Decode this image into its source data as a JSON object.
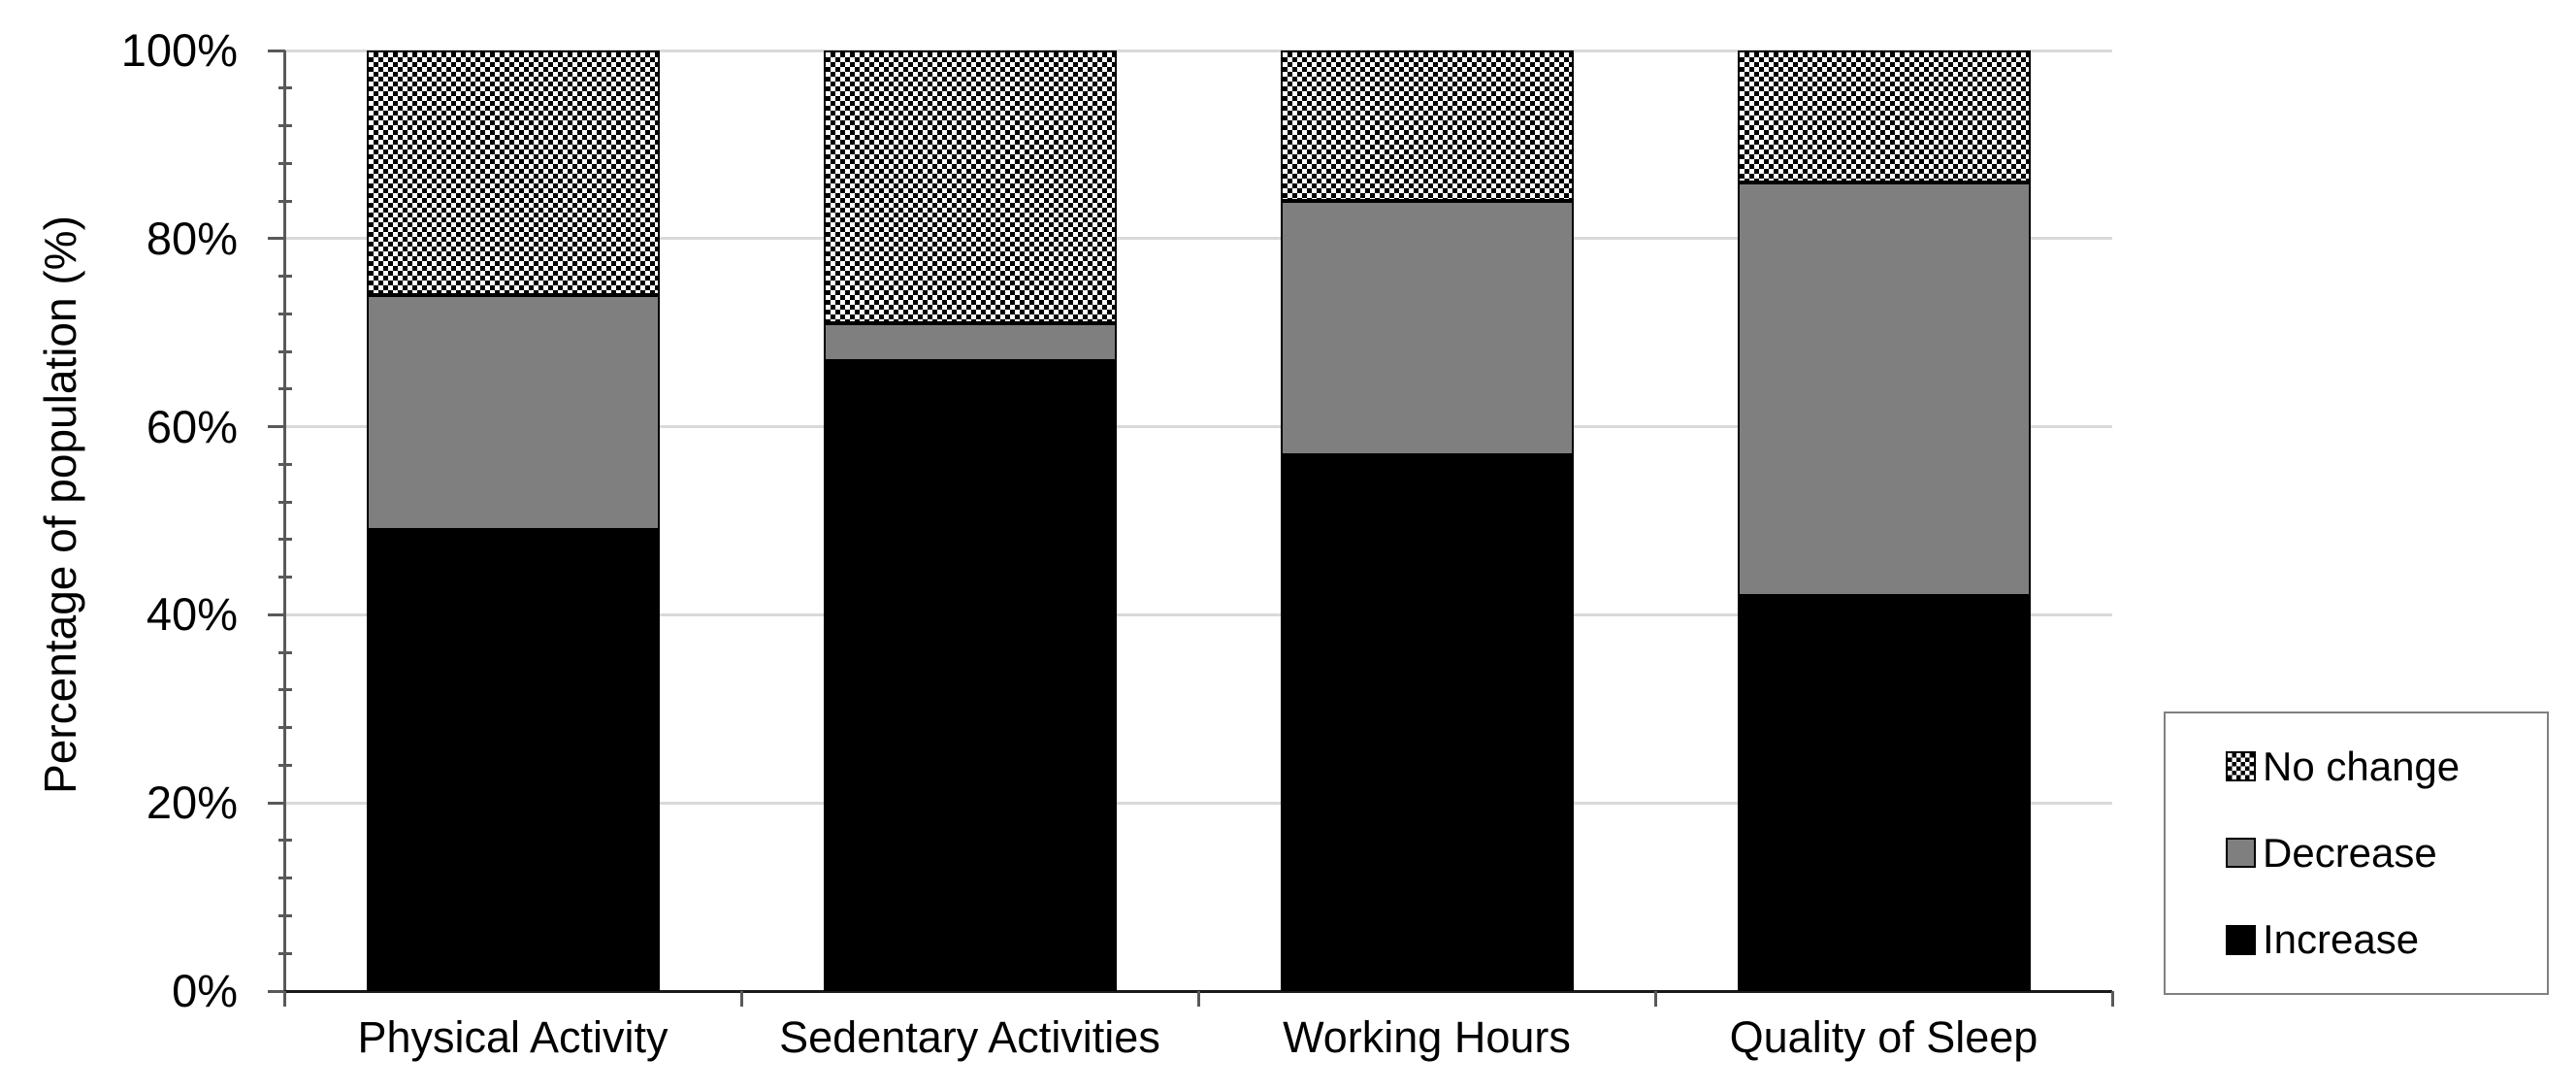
{
  "chart_data": {
    "type": "bar",
    "stacked": true,
    "stack_unit": "percent",
    "categories": [
      "Physical Activity",
      "Sedentary Activities",
      "Working Hours",
      "Quality of Sleep"
    ],
    "series": [
      {
        "name": "Increase",
        "values": [
          49,
          67,
          57,
          42
        ],
        "color": "#000000",
        "fill": "solid"
      },
      {
        "name": "Decrease",
        "values": [
          25,
          4,
          27,
          44
        ],
        "color": "#7f7f7f",
        "fill": "solid"
      },
      {
        "name": "No change",
        "values": [
          26,
          29,
          16,
          14
        ],
        "color": "#000000",
        "fill": "checker",
        "pattern_bg": "#ffffff"
      }
    ],
    "ylabel": "Percentage of population (%)",
    "xlabel": "",
    "ylim": [
      0,
      100
    ],
    "yticks": [
      0,
      20,
      40,
      60,
      80,
      100
    ],
    "ytick_labels": [
      "0%",
      "20%",
      "40%",
      "60%",
      "80%",
      "100%"
    ],
    "minor_tick_step": 4,
    "grid": "horizontal",
    "gridline_color": "#d9d9d9",
    "axis_color": "#595959",
    "bar_fill_colors": {
      "increase": "#000000",
      "decrease": "#7f7f7f",
      "no_change_pattern_fg": "#000000",
      "no_change_pattern_bg": "#ffffff"
    },
    "legend": {
      "position": "right",
      "entries": [
        "No change",
        "Decrease",
        "Increase"
      ],
      "border_color": "#808080"
    }
  }
}
